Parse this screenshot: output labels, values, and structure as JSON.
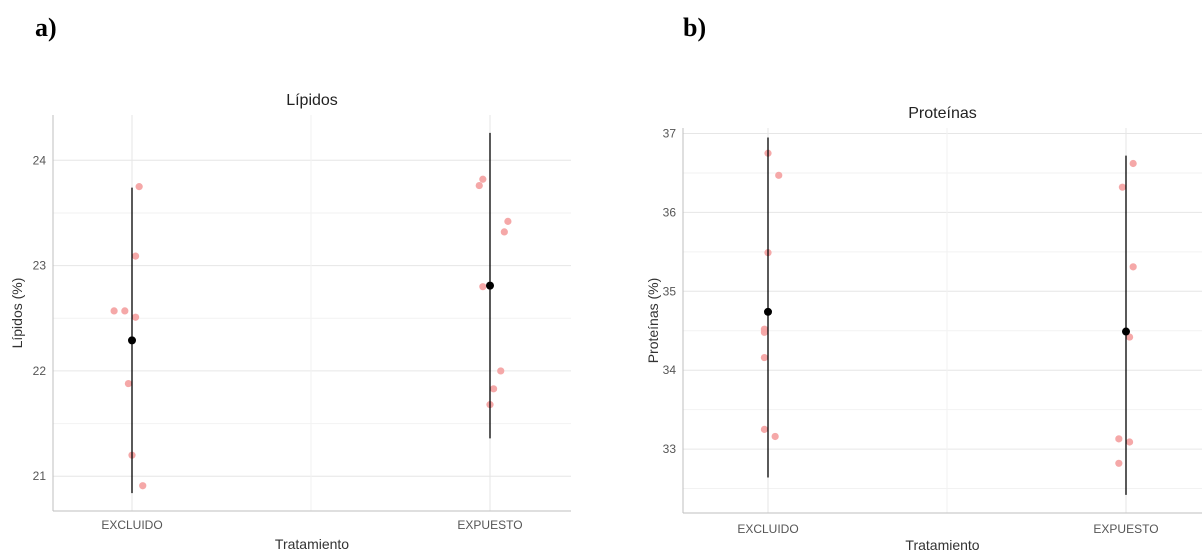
{
  "panels": [
    {
      "label": "a)"
    },
    {
      "label": "b)"
    }
  ],
  "chart_data": [
    {
      "type": "scatter",
      "title": "Lípidos",
      "xlabel": "Tratamiento",
      "ylabel": "Lípidos (%)",
      "categories": [
        "EXCLUIDO",
        "EXPUESTO"
      ],
      "yticks": [
        21,
        22,
        23,
        24
      ],
      "ylim": [
        20.67,
        24.43
      ],
      "grid": true,
      "legend": "none",
      "point_color": "#f4a3a3",
      "summary_color": "#000000",
      "points": [
        {
          "category": "EXCLUIDO",
          "jitter": 0.02,
          "y": 23.75
        },
        {
          "category": "EXCLUIDO",
          "jitter": 0.01,
          "y": 23.09
        },
        {
          "category": "EXCLUIDO",
          "jitter": -0.05,
          "y": 22.57
        },
        {
          "category": "EXCLUIDO",
          "jitter": -0.02,
          "y": 22.57
        },
        {
          "category": "EXCLUIDO",
          "jitter": 0.01,
          "y": 22.51
        },
        {
          "category": "EXCLUIDO",
          "jitter": -0.01,
          "y": 21.88
        },
        {
          "category": "EXCLUIDO",
          "jitter": 0.0,
          "y": 21.2
        },
        {
          "category": "EXCLUIDO",
          "jitter": 0.03,
          "y": 20.91
        },
        {
          "category": "EXPUESTO",
          "jitter": -0.02,
          "y": 23.82
        },
        {
          "category": "EXPUESTO",
          "jitter": -0.03,
          "y": 23.76
        },
        {
          "category": "EXPUESTO",
          "jitter": 0.05,
          "y": 23.42
        },
        {
          "category": "EXPUESTO",
          "jitter": 0.04,
          "y": 23.32
        },
        {
          "category": "EXPUESTO",
          "jitter": -0.02,
          "y": 22.8
        },
        {
          "category": "EXPUESTO",
          "jitter": 0.03,
          "y": 22.0
        },
        {
          "category": "EXPUESTO",
          "jitter": 0.01,
          "y": 21.83
        },
        {
          "category": "EXPUESTO",
          "jitter": 0.0,
          "y": 21.68
        }
      ],
      "summary": [
        {
          "category": "EXCLUIDO",
          "mean": 22.29,
          "low": 20.84,
          "high": 23.74
        },
        {
          "category": "EXPUESTO",
          "mean": 22.81,
          "low": 21.36,
          "high": 24.26
        }
      ]
    },
    {
      "type": "scatter",
      "title": "Proteínas",
      "xlabel": "Tratamiento",
      "ylabel": "Proteínas (%)",
      "categories": [
        "EXCLUIDO",
        "EXPUESTO"
      ],
      "yticks": [
        33,
        34,
        35,
        36,
        37
      ],
      "ylim": [
        32.19,
        37.07
      ],
      "grid": true,
      "legend": "none",
      "point_color": "#f4a3a3",
      "summary_color": "#000000",
      "points": [
        {
          "category": "EXCLUIDO",
          "jitter": 0.0,
          "y": 36.75
        },
        {
          "category": "EXCLUIDO",
          "jitter": 0.03,
          "y": 36.47
        },
        {
          "category": "EXCLUIDO",
          "jitter": 0.0,
          "y": 35.49
        },
        {
          "category": "EXCLUIDO",
          "jitter": -0.01,
          "y": 34.52
        },
        {
          "category": "EXCLUIDO",
          "jitter": -0.01,
          "y": 34.48
        },
        {
          "category": "EXCLUIDO",
          "jitter": -0.01,
          "y": 34.16
        },
        {
          "category": "EXCLUIDO",
          "jitter": -0.01,
          "y": 33.25
        },
        {
          "category": "EXCLUIDO",
          "jitter": 0.02,
          "y": 33.16
        },
        {
          "category": "EXPUESTO",
          "jitter": 0.02,
          "y": 36.62
        },
        {
          "category": "EXPUESTO",
          "jitter": -0.01,
          "y": 36.32
        },
        {
          "category": "EXPUESTO",
          "jitter": 0.02,
          "y": 35.31
        },
        {
          "category": "EXPUESTO",
          "jitter": 0.01,
          "y": 34.42
        },
        {
          "category": "EXPUESTO",
          "jitter": -0.02,
          "y": 33.13
        },
        {
          "category": "EXPUESTO",
          "jitter": 0.01,
          "y": 33.09
        },
        {
          "category": "EXPUESTO",
          "jitter": -0.02,
          "y": 32.82
        }
      ],
      "summary": [
        {
          "category": "EXCLUIDO",
          "mean": 34.74,
          "low": 32.64,
          "high": 36.95
        },
        {
          "category": "EXPUESTO",
          "mean": 34.49,
          "low": 32.42,
          "high": 36.72
        }
      ]
    }
  ]
}
